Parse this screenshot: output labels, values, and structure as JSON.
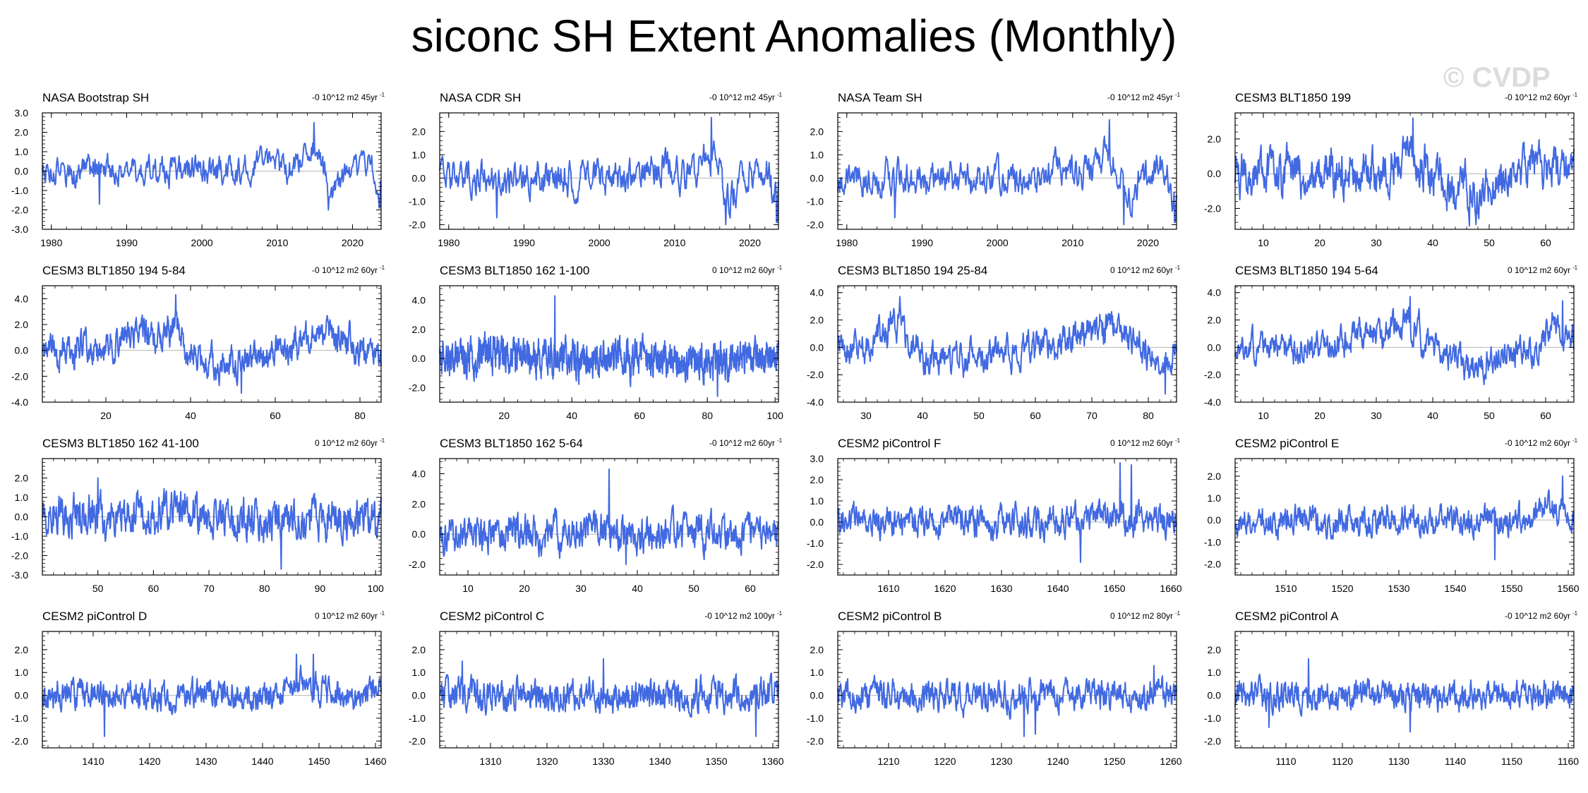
{
  "page": {
    "title": "siconc SH Extent Anomalies (Monthly)",
    "watermark": "© CVDP"
  },
  "colors": {
    "line": "#4169e1",
    "zero": "#b4b4b4",
    "axis": "#000000"
  },
  "chart_data": [
    {
      "type": "line",
      "title": "NASA Bootstrap SH",
      "trend": "-0 10^12 m2 45yr",
      "ylim": [
        -3,
        3
      ],
      "yticks": [
        -3,
        -2,
        -1,
        0,
        1,
        2,
        3
      ],
      "xlim": [
        1978.8,
        2023.8
      ],
      "xticks": [
        1980,
        1990,
        2000,
        2010,
        2020
      ],
      "xtick_labels": [
        "1980",
        "1990",
        "2000",
        "2010",
        "2020"
      ],
      "amp": 0.45,
      "ar": 0.6,
      "seed": 1,
      "events": [
        {
          "x": 2008.5,
          "w": 2.2,
          "h": 0.5
        },
        {
          "x": 2014.8,
          "w": 1.8,
          "h": 1.0
        },
        {
          "x": 2017.2,
          "w": 1.2,
          "h": -1.1
        },
        {
          "x": 2021.5,
          "w": 1.2,
          "h": 0.6
        },
        {
          "x": 2023.3,
          "w": 0.6,
          "h": -0.9
        }
      ],
      "spikes": [
        {
          "x": 2014.9,
          "y": 2.5
        },
        {
          "x": 2016.8,
          "y": -2.0
        },
        {
          "x": 2023.6,
          "y": -1.9
        },
        {
          "x": 1986.4,
          "y": -1.7
        }
      ]
    },
    {
      "type": "line",
      "title": "NASA CDR SH",
      "trend": "-0 10^12 m2 45yr",
      "ylim": [
        -2.2,
        2.8
      ],
      "yticks": [
        -2,
        -1,
        0,
        1,
        2
      ],
      "xlim": [
        1978.8,
        2023.8
      ],
      "xticks": [
        1980,
        1990,
        2000,
        2010,
        2020
      ],
      "xtick_labels": [
        "1980",
        "1990",
        "2000",
        "2010",
        "2020"
      ],
      "amp": 0.45,
      "ar": 0.6,
      "seed": 2,
      "events": [
        {
          "x": 2008.5,
          "w": 2.2,
          "h": 0.5
        },
        {
          "x": 2014.8,
          "w": 1.8,
          "h": 1.0
        },
        {
          "x": 2017.2,
          "w": 1.2,
          "h": -1.1
        },
        {
          "x": 2021.5,
          "w": 1.2,
          "h": 0.6
        },
        {
          "x": 2023.3,
          "w": 0.6,
          "h": -0.9
        }
      ],
      "spikes": [
        {
          "x": 2014.9,
          "y": 2.6
        },
        {
          "x": 2016.8,
          "y": -2.0
        },
        {
          "x": 2023.6,
          "y": -1.9
        },
        {
          "x": 1986.4,
          "y": -1.7
        }
      ]
    },
    {
      "type": "line",
      "title": "NASA Team SH",
      "trend": "-0 10^12 m2 45yr",
      "ylim": [
        -2.2,
        2.8
      ],
      "yticks": [
        -2,
        -1,
        0,
        1,
        2
      ],
      "xlim": [
        1978.8,
        2023.8
      ],
      "xticks": [
        1980,
        1990,
        2000,
        2010,
        2020
      ],
      "xtick_labels": [
        "1980",
        "1990",
        "2000",
        "2010",
        "2020"
      ],
      "amp": 0.45,
      "ar": 0.6,
      "seed": 3,
      "events": [
        {
          "x": 2008.5,
          "w": 2.2,
          "h": 0.5
        },
        {
          "x": 2014.8,
          "w": 1.8,
          "h": 1.0
        },
        {
          "x": 2017.2,
          "w": 1.2,
          "h": -1.1
        },
        {
          "x": 2021.5,
          "w": 1.2,
          "h": 0.6
        },
        {
          "x": 2023.3,
          "w": 0.6,
          "h": -0.9
        }
      ],
      "spikes": [
        {
          "x": 2014.9,
          "y": 2.5
        },
        {
          "x": 2016.8,
          "y": -2.0
        },
        {
          "x": 2023.6,
          "y": -1.9
        },
        {
          "x": 1986.4,
          "y": -1.7
        }
      ]
    },
    {
      "type": "line",
      "title": "CESM3 BLT1850 199",
      "trend": "-0 10^12 m2 60yr",
      "ylim": [
        -3.2,
        3.5
      ],
      "yticks": [
        -2,
        0,
        2
      ],
      "xlim": [
        5,
        65
      ],
      "xticks": [
        10,
        20,
        30,
        40,
        50,
        60
      ],
      "xtick_labels": [
        "10",
        "20",
        "30",
        "40",
        "50",
        "60"
      ],
      "amp": 0.75,
      "ar": 0.7,
      "seed": 4,
      "events": [
        {
          "x": 35,
          "w": 4,
          "h": 1.0
        },
        {
          "x": 47,
          "w": 5,
          "h": -1.0
        },
        {
          "x": 60,
          "w": 4,
          "h": 0.7
        }
      ],
      "spikes": [
        {
          "x": 36.5,
          "y": 3.2
        },
        {
          "x": 46.5,
          "y": -3.0
        }
      ]
    },
    {
      "type": "line",
      "title": "CESM3 BLT1850 194 5-84",
      "trend": "-0 10^12 m2 60yr",
      "ylim": [
        -4,
        5
      ],
      "yticks": [
        -4,
        -2,
        0,
        2,
        4
      ],
      "xlim": [
        5,
        85
      ],
      "xticks": [
        20,
        40,
        60,
        80
      ],
      "xtick_labels": [
        "20",
        "40",
        "60",
        "80"
      ],
      "amp": 0.65,
      "ar": 0.7,
      "seed": 5,
      "events": [
        {
          "x": 28,
          "w": 7,
          "h": 1.3
        },
        {
          "x": 36,
          "w": 2.5,
          "h": 1.5
        },
        {
          "x": 48,
          "w": 8,
          "h": -1.3
        },
        {
          "x": 72,
          "w": 7,
          "h": 1.3
        },
        {
          "x": 82,
          "w": 3,
          "h": -0.5
        }
      ],
      "spikes": [
        {
          "x": 36.5,
          "y": 4.3
        },
        {
          "x": 52,
          "y": -3.3
        }
      ]
    },
    {
      "type": "line",
      "title": "CESM3 BLT1850 162 1-100",
      "trend": "0 10^12 m2 60yr",
      "ylim": [
        -3,
        5
      ],
      "yticks": [
        -2,
        0,
        2,
        4
      ],
      "xlim": [
        1,
        101
      ],
      "xticks": [
        20,
        40,
        60,
        80,
        100
      ],
      "xtick_labels": [
        "20",
        "40",
        "60",
        "80",
        "100"
      ],
      "amp": 0.8,
      "ar": 0.55,
      "seed": 6,
      "events": [
        {
          "x": 20,
          "w": 10,
          "h": 0.3
        },
        {
          "x": 80,
          "w": 8,
          "h": -0.4
        }
      ],
      "spikes": [
        {
          "x": 35,
          "y": 4.3
        },
        {
          "x": 83,
          "y": -2.6
        }
      ]
    },
    {
      "type": "line",
      "title": "CESM3 BLT1850 194 25-84",
      "trend": "0 10^12 m2 60yr",
      "ylim": [
        -4,
        4.5
      ],
      "yticks": [
        -4,
        -2,
        0,
        2,
        4
      ],
      "xlim": [
        25,
        85
      ],
      "xticks": [
        30,
        40,
        50,
        60,
        70,
        80
      ],
      "xtick_labels": [
        "30",
        "40",
        "50",
        "60",
        "70",
        "80"
      ],
      "amp": 0.7,
      "ar": 0.65,
      "seed": 7,
      "events": [
        {
          "x": 35,
          "w": 3,
          "h": 1.8
        },
        {
          "x": 47,
          "w": 8,
          "h": -1.0
        },
        {
          "x": 72,
          "w": 6,
          "h": 1.5
        },
        {
          "x": 82,
          "w": 3,
          "h": -1.2
        }
      ],
      "spikes": [
        {
          "x": 36,
          "y": 3.7
        },
        {
          "x": 83,
          "y": -3.4
        }
      ]
    },
    {
      "type": "line",
      "title": "CESM3 BLT1850 194 5-64",
      "trend": "0 10^12 m2 60yr",
      "ylim": [
        -4,
        4.5
      ],
      "yticks": [
        -4,
        -2,
        0,
        2,
        4
      ],
      "xlim": [
        5,
        65
      ],
      "xticks": [
        10,
        20,
        30,
        40,
        50,
        60
      ],
      "xtick_labels": [
        "10",
        "20",
        "30",
        "40",
        "50",
        "60"
      ],
      "amp": 0.65,
      "ar": 0.7,
      "seed": 8,
      "events": [
        {
          "x": 30,
          "w": 6,
          "h": 1.2
        },
        {
          "x": 36,
          "w": 2.5,
          "h": 1.4
        },
        {
          "x": 47,
          "w": 6,
          "h": -1.3
        },
        {
          "x": 62,
          "w": 2.5,
          "h": 1.6
        }
      ],
      "spikes": [
        {
          "x": 36,
          "y": 3.7
        },
        {
          "x": 63,
          "y": 3.4
        }
      ]
    },
    {
      "type": "line",
      "title": "CESM3 BLT1850 162 41-100",
      "trend": "0 10^12 m2 60yr",
      "ylim": [
        -3,
        3
      ],
      "yticks": [
        -3,
        -2,
        -1,
        0,
        1,
        2
      ],
      "xlim": [
        40,
        101
      ],
      "xticks": [
        50,
        60,
        70,
        80,
        90,
        100
      ],
      "xtick_labels": [
        "50",
        "60",
        "70",
        "80",
        "90",
        "100"
      ],
      "amp": 0.65,
      "ar": 0.55,
      "seed": 9,
      "events": [
        {
          "x": 62,
          "w": 6,
          "h": 0.3
        },
        {
          "x": 85,
          "w": 6,
          "h": -0.3
        }
      ],
      "spikes": [
        {
          "x": 50,
          "y": 2.0
        },
        {
          "x": 83,
          "y": -2.7
        }
      ]
    },
    {
      "type": "line",
      "title": "CESM3 BLT1850 162 5-64",
      "trend": "-0 10^12 m2 60yr",
      "ylim": [
        -2.7,
        5
      ],
      "yticks": [
        -2,
        0,
        2,
        4
      ],
      "xlim": [
        5,
        65
      ],
      "xticks": [
        10,
        20,
        30,
        40,
        50,
        60
      ],
      "xtick_labels": [
        "10",
        "20",
        "30",
        "40",
        "50",
        "60"
      ],
      "amp": 0.75,
      "ar": 0.6,
      "seed": 10,
      "events": [
        {
          "x": 35,
          "w": 3,
          "h": 0.5
        }
      ],
      "spikes": [
        {
          "x": 35,
          "y": 4.3
        },
        {
          "x": 38,
          "y": -2.0
        }
      ]
    },
    {
      "type": "line",
      "title": "CESM2 piControl F",
      "trend": "0 10^12 m2 60yr",
      "ylim": [
        -2.5,
        3
      ],
      "yticks": [
        -2,
        -1,
        0,
        1,
        2,
        3
      ],
      "xlim": [
        1601,
        1661
      ],
      "xticks": [
        1610,
        1620,
        1630,
        1640,
        1650,
        1660
      ],
      "xtick_labels": [
        "1610",
        "1620",
        "1630",
        "1640",
        "1650",
        "1660"
      ],
      "amp": 0.45,
      "ar": 0.6,
      "seed": 11,
      "events": [
        {
          "x": 1648,
          "w": 4,
          "h": 0.5
        }
      ],
      "spikes": [
        {
          "x": 1651,
          "y": 2.8
        },
        {
          "x": 1653,
          "y": 2.7
        },
        {
          "x": 1644,
          "y": -1.9
        }
      ]
    },
    {
      "type": "line",
      "title": "CESM2 piControl E",
      "trend": "-0 10^12 m2 60yr",
      "ylim": [
        -2.5,
        2.8
      ],
      "yticks": [
        -2,
        -1,
        0,
        1,
        2
      ],
      "xlim": [
        1501,
        1561
      ],
      "xticks": [
        1510,
        1520,
        1530,
        1540,
        1550,
        1560
      ],
      "xtick_labels": [
        "1510",
        "1520",
        "1530",
        "1540",
        "1550",
        "1560"
      ],
      "amp": 0.4,
      "ar": 0.6,
      "seed": 12,
      "events": [
        {
          "x": 1557,
          "w": 3,
          "h": 0.5
        }
      ],
      "spikes": [
        {
          "x": 1559,
          "y": 2.0
        },
        {
          "x": 1547,
          "y": -1.8
        }
      ]
    },
    {
      "type": "line",
      "title": "CESM2 piControl D",
      "trend": "0 10^12 m2 60yr",
      "ylim": [
        -2.3,
        2.8
      ],
      "yticks": [
        -2,
        -1,
        0,
        1,
        2
      ],
      "xlim": [
        1401,
        1461
      ],
      "xticks": [
        1410,
        1420,
        1430,
        1440,
        1450,
        1460
      ],
      "xtick_labels": [
        "1410",
        "1420",
        "1430",
        "1440",
        "1450",
        "1460"
      ],
      "amp": 0.4,
      "ar": 0.6,
      "seed": 13,
      "events": [
        {
          "x": 1447,
          "w": 3,
          "h": 0.6
        }
      ],
      "spikes": [
        {
          "x": 1446,
          "y": 1.8
        },
        {
          "x": 1449,
          "y": 1.8
        },
        {
          "x": 1412,
          "y": -1.8
        }
      ]
    },
    {
      "type": "line",
      "title": "CESM2 piControl C",
      "trend": "-0 10^12 m2 100yr",
      "ylim": [
        -2.3,
        2.8
      ],
      "yticks": [
        -2,
        -1,
        0,
        1,
        2
      ],
      "xlim": [
        1301,
        1361
      ],
      "xticks": [
        1310,
        1320,
        1330,
        1340,
        1350,
        1360
      ],
      "xtick_labels": [
        "1310",
        "1320",
        "1330",
        "1340",
        "1350",
        "1360"
      ],
      "amp": 0.45,
      "ar": 0.55,
      "seed": 14,
      "events": [],
      "spikes": [
        {
          "x": 1330,
          "y": 1.6
        },
        {
          "x": 1357,
          "y": -1.8
        },
        {
          "x": 1305,
          "y": 1.5
        }
      ]
    },
    {
      "type": "line",
      "title": "CESM2 piControl B",
      "trend": "0 10^12 m2 80yr",
      "ylim": [
        -2.3,
        2.8
      ],
      "yticks": [
        -2,
        -1,
        0,
        1,
        2
      ],
      "xlim": [
        1201,
        1261
      ],
      "xticks": [
        1210,
        1220,
        1230,
        1240,
        1250,
        1260
      ],
      "xtick_labels": [
        "1210",
        "1220",
        "1230",
        "1240",
        "1250",
        "1260"
      ],
      "amp": 0.4,
      "ar": 0.6,
      "seed": 15,
      "events": [],
      "spikes": [
        {
          "x": 1234,
          "y": -1.8
        },
        {
          "x": 1236,
          "y": -1.7
        },
        {
          "x": 1257,
          "y": 1.3
        }
      ]
    },
    {
      "type": "line",
      "title": "CESM2 piControl A",
      "trend": "-0 10^12 m2 60yr",
      "ylim": [
        -2.3,
        2.8
      ],
      "yticks": [
        -2,
        -1,
        0,
        1,
        2
      ],
      "xlim": [
        1101,
        1161
      ],
      "xticks": [
        1110,
        1120,
        1130,
        1140,
        1150,
        1160
      ],
      "xtick_labels": [
        "1110",
        "1120",
        "1130",
        "1140",
        "1150",
        "1160"
      ],
      "amp": 0.4,
      "ar": 0.55,
      "seed": 16,
      "events": [],
      "spikes": [
        {
          "x": 1114,
          "y": 1.6
        },
        {
          "x": 1132,
          "y": -1.6
        },
        {
          "x": 1107,
          "y": -1.4
        }
      ]
    }
  ]
}
